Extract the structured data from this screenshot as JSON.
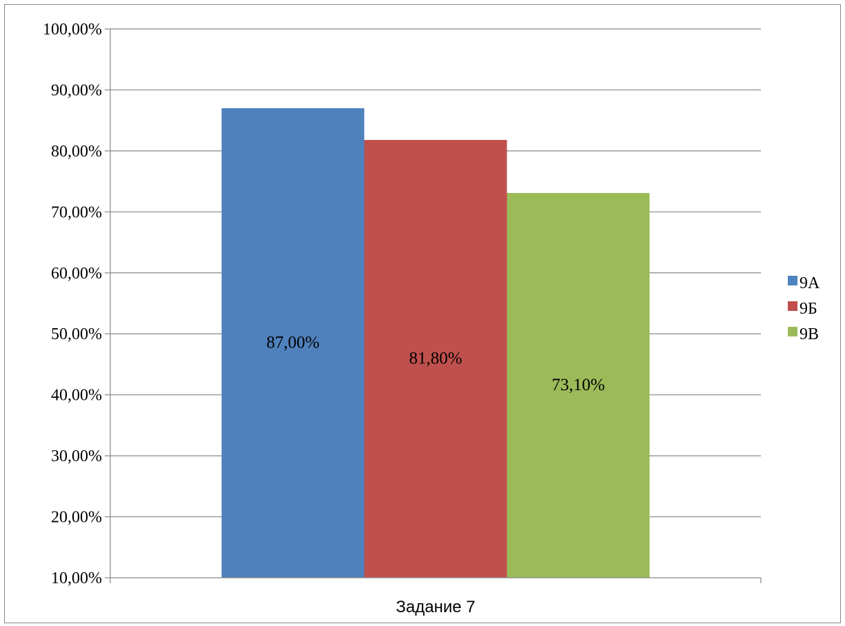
{
  "chart_data": {
    "type": "bar",
    "categories": [
      "Задание 7"
    ],
    "series": [
      {
        "name": "9А",
        "values": [
          87.0
        ],
        "label": "87,00%",
        "color": "#4F81BD"
      },
      {
        "name": "9Б",
        "values": [
          81.8
        ],
        "label": "81,80%",
        "color": "#C0504D"
      },
      {
        "name": "9В",
        "values": [
          73.1
        ],
        "label": "73,10%",
        "color": "#9BBB59"
      }
    ],
    "ylim": [
      10,
      100
    ],
    "y_ticks": [
      "10,00%",
      "20,00%",
      "30,00%",
      "40,00%",
      "50,00%",
      "60,00%",
      "70,00%",
      "80,00%",
      "90,00%",
      "100,00%"
    ],
    "grid": true,
    "legend_position": "right",
    "title": "",
    "xlabel": "",
    "ylabel": ""
  }
}
